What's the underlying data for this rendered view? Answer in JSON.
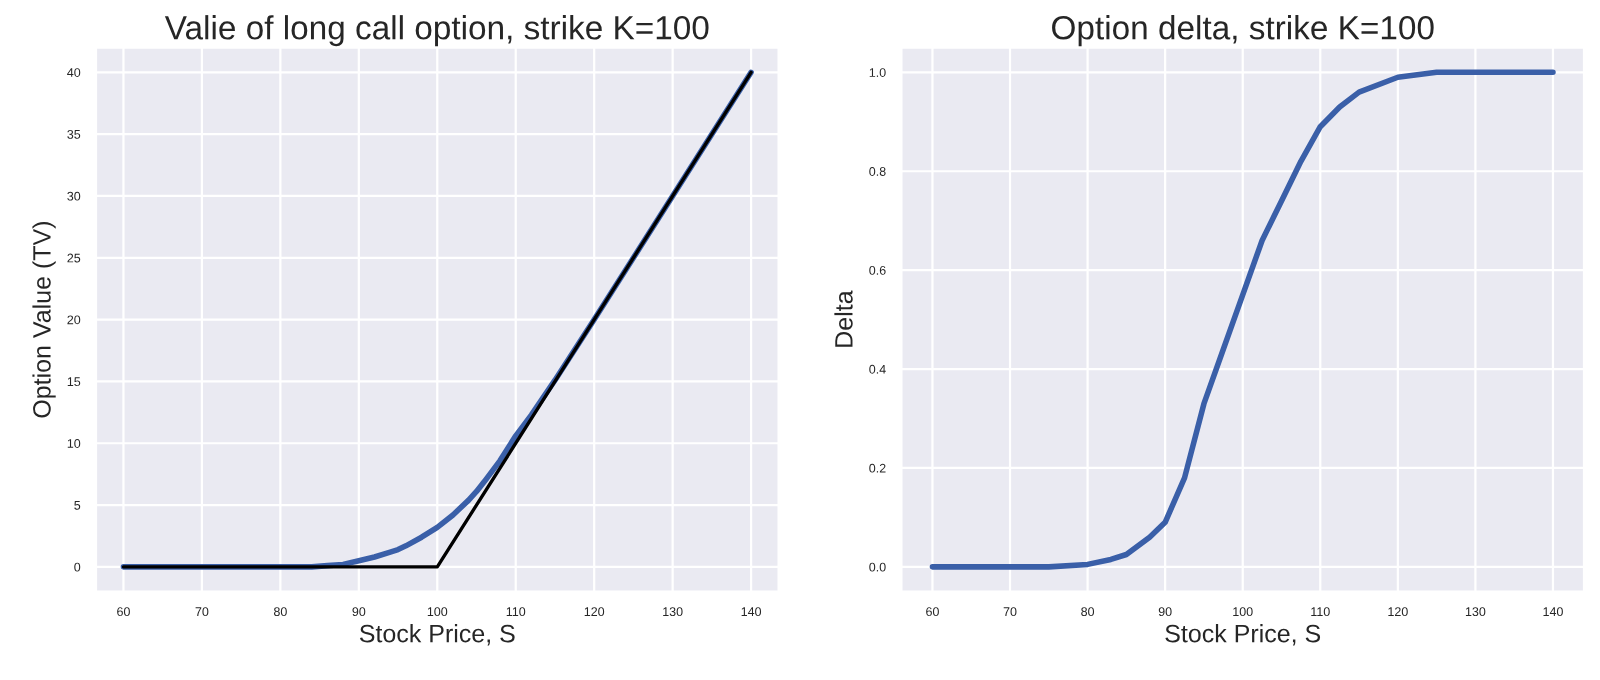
{
  "chart_data": [
    {
      "type": "line",
      "title": "Valie of long call option, strike K=100",
      "xlabel": "Stock Price, S",
      "ylabel": "Option Value (TV)",
      "xlim": [
        56.5,
        143.5
      ],
      "ylim": [
        -2,
        42
      ],
      "xticks": [
        60,
        70,
        80,
        90,
        100,
        110,
        120,
        130,
        140
      ],
      "yticks": [
        0,
        5,
        10,
        15,
        20,
        25,
        30,
        35,
        40
      ],
      "grid": true,
      "series": [
        {
          "color": "#3a5fa8",
          "x": [
            60,
            70,
            80,
            84,
            86,
            88,
            90,
            92,
            94,
            95,
            96,
            98,
            100,
            102,
            104,
            105,
            106,
            108,
            110,
            112,
            115,
            120,
            130,
            140
          ],
          "values": [
            0,
            0,
            0,
            0,
            0.1,
            0.2,
            0.5,
            0.8,
            1.2,
            1.4,
            1.7,
            2.4,
            3.2,
            4.2,
            5.4,
            6.1,
            6.9,
            8.6,
            10.6,
            12.3,
            15.1,
            20,
            30,
            40
          ]
        },
        {
          "color": "#000000",
          "x": [
            60,
            100,
            140
          ],
          "values": [
            0,
            0,
            40
          ]
        }
      ]
    },
    {
      "type": "line",
      "title": "Option delta, strike K=100",
      "xlabel": "Stock Price, S",
      "ylabel": "Delta",
      "xlim": [
        56,
        144
      ],
      "ylim": [
        -0.05,
        1.05
      ],
      "xticks": [
        60,
        70,
        80,
        90,
        100,
        110,
        120,
        130,
        140
      ],
      "yticks": [
        {
          "value": 0,
          "label": "0.0"
        },
        0.2,
        0.4,
        0.6,
        0.8,
        {
          "value": 1,
          "label": "1.0"
        }
      ],
      "grid": true,
      "series": [
        {
          "color": "#3a5fa8",
          "x": [
            60,
            70,
            75,
            80,
            83,
            85,
            88,
            90,
            92.5,
            95,
            97.5,
            100,
            102.5,
            105,
            107.5,
            110,
            112.5,
            115,
            120,
            125,
            130,
            140
          ],
          "values": [
            0,
            0,
            0,
            0.005,
            0.015,
            0.025,
            0.06,
            0.09,
            0.18,
            0.33,
            0.44,
            0.55,
            0.66,
            0.74,
            0.82,
            0.89,
            0.93,
            0.96,
            0.99,
            1,
            1,
            1
          ]
        }
      ]
    }
  ]
}
